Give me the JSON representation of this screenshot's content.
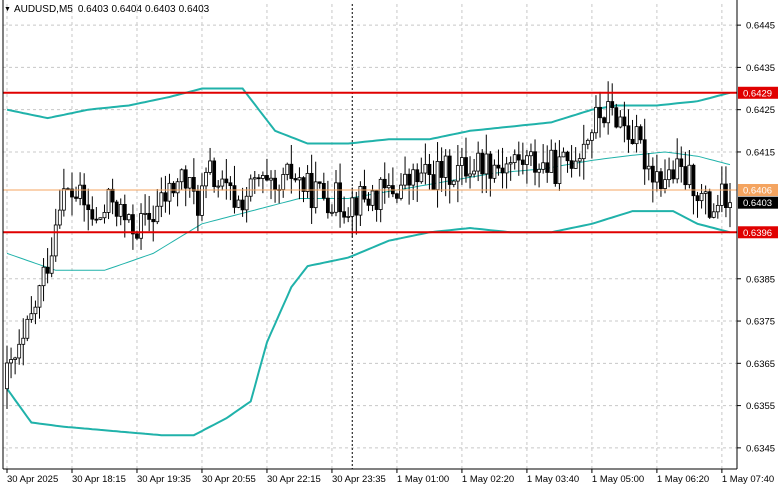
{
  "header": {
    "symbol": "AUDUSD,M5",
    "open": "0.6403",
    "high": "0.6404",
    "low": "0.6403",
    "close": "0.6403",
    "dropdown_icon": "triangle-down-icon"
  },
  "colors": {
    "background": "#ffffff",
    "grid": "#c8c8c8",
    "candle": "#000000",
    "bollinger": "#20b2aa",
    "sr_line": "#e00000",
    "price_line": "#f4a460",
    "current_badge": "#000000"
  },
  "chart_data": {
    "type": "candlestick",
    "title": "AUDUSD,M5",
    "ylim": [
      0.634,
      0.645
    ],
    "grid": true,
    "y_ticks": [
      "0.6445",
      "0.6435",
      "0.6425",
      "0.6415",
      "0.6385",
      "0.6375",
      "0.6365",
      "0.6355",
      "0.6345"
    ],
    "x_ticks": [
      "30 Apr 2025",
      "30 Apr 18:15",
      "30 Apr 19:35",
      "30 Apr 20:55",
      "30 Apr 22:15",
      "30 Apr 23:35",
      "1 May 01:00",
      "1 May 02:20",
      "1 May 03:40",
      "1 May 05:00",
      "1 May 06:20",
      "1 May 07:40"
    ],
    "x_tick_index": [
      0,
      16,
      32,
      48,
      64,
      80,
      96,
      112,
      128,
      144,
      160,
      176
    ],
    "n_bars": 179,
    "vline_index": 85,
    "levels": [
      {
        "value": 0.6429,
        "label": "0.6429",
        "kind": "resistance"
      },
      {
        "value": 0.6396,
        "label": "0.6396",
        "kind": "support"
      }
    ],
    "price_line": {
      "value": 0.6406,
      "label": "0.6406"
    },
    "current_price": {
      "value": 0.6403,
      "label": "0.6403"
    },
    "close_anchors": [
      [
        0,
        0.6362
      ],
      [
        4,
        0.6369
      ],
      [
        8,
        0.6382
      ],
      [
        11,
        0.6393
      ],
      [
        13,
        0.6405
      ],
      [
        17,
        0.6405
      ],
      [
        22,
        0.6398
      ],
      [
        26,
        0.6404
      ],
      [
        30,
        0.6397
      ],
      [
        34,
        0.6398
      ],
      [
        38,
        0.6403
      ],
      [
        43,
        0.6409
      ],
      [
        47,
        0.6403
      ],
      [
        50,
        0.641
      ],
      [
        53,
        0.6406
      ],
      [
        57,
        0.6403
      ],
      [
        62,
        0.6408
      ],
      [
        66,
        0.6404
      ],
      [
        70,
        0.641
      ],
      [
        74,
        0.6406
      ],
      [
        78,
        0.6405
      ],
      [
        83,
        0.6403
      ],
      [
        88,
        0.6404
      ],
      [
        93,
        0.6405
      ],
      [
        97,
        0.6407
      ],
      [
        102,
        0.6409
      ],
      [
        107,
        0.641
      ],
      [
        112,
        0.6411
      ],
      [
        117,
        0.6413
      ],
      [
        122,
        0.6412
      ],
      [
        127,
        0.6413
      ],
      [
        132,
        0.6412
      ],
      [
        136,
        0.6411
      ],
      [
        141,
        0.6416
      ],
      [
        146,
        0.6424
      ],
      [
        150,
        0.6424
      ],
      [
        154,
        0.6419
      ],
      [
        158,
        0.6412
      ],
      [
        161,
        0.6409
      ],
      [
        165,
        0.641
      ],
      [
        169,
        0.6408
      ],
      [
        171,
        0.6404
      ],
      [
        173,
        0.6401
      ],
      [
        176,
        0.6404
      ],
      [
        178,
        0.6403
      ]
    ],
    "bb_upper": [
      [
        0,
        0.6425
      ],
      [
        10,
        0.6423
      ],
      [
        20,
        0.6425
      ],
      [
        30,
        0.6426
      ],
      [
        40,
        0.6428
      ],
      [
        48,
        0.643
      ],
      [
        58,
        0.643
      ],
      [
        66,
        0.642
      ],
      [
        74,
        0.6417
      ],
      [
        84,
        0.6417
      ],
      [
        94,
        0.6418
      ],
      [
        104,
        0.6418
      ],
      [
        114,
        0.642
      ],
      [
        124,
        0.6421
      ],
      [
        134,
        0.6422
      ],
      [
        144,
        0.6425
      ],
      [
        150,
        0.6426
      ],
      [
        160,
        0.6426
      ],
      [
        170,
        0.6427
      ],
      [
        178,
        0.6429
      ]
    ],
    "bb_middle": [
      [
        0,
        0.6391
      ],
      [
        12,
        0.6387
      ],
      [
        24,
        0.6387
      ],
      [
        36,
        0.6391
      ],
      [
        48,
        0.6398
      ],
      [
        60,
        0.6401
      ],
      [
        72,
        0.6404
      ],
      [
        84,
        0.6404
      ],
      [
        96,
        0.6406
      ],
      [
        108,
        0.6408
      ],
      [
        120,
        0.641
      ],
      [
        132,
        0.6411
      ],
      [
        144,
        0.6413
      ],
      [
        152,
        0.6414
      ],
      [
        162,
        0.6415
      ],
      [
        170,
        0.6414
      ],
      [
        178,
        0.6412
      ]
    ],
    "bb_lower": [
      [
        0,
        0.6359
      ],
      [
        6,
        0.6351
      ],
      [
        14,
        0.635
      ],
      [
        26,
        0.6349
      ],
      [
        38,
        0.6348
      ],
      [
        46,
        0.6348
      ],
      [
        54,
        0.6352
      ],
      [
        60,
        0.6356
      ],
      [
        64,
        0.637
      ],
      [
        70,
        0.6383
      ],
      [
        74,
        0.6388
      ],
      [
        84,
        0.639
      ],
      [
        94,
        0.6394
      ],
      [
        104,
        0.6396
      ],
      [
        114,
        0.6397
      ],
      [
        124,
        0.6396
      ],
      [
        134,
        0.6396
      ],
      [
        144,
        0.6398
      ],
      [
        154,
        0.6401
      ],
      [
        164,
        0.6401
      ],
      [
        170,
        0.6398
      ],
      [
        178,
        0.6396
      ]
    ]
  }
}
